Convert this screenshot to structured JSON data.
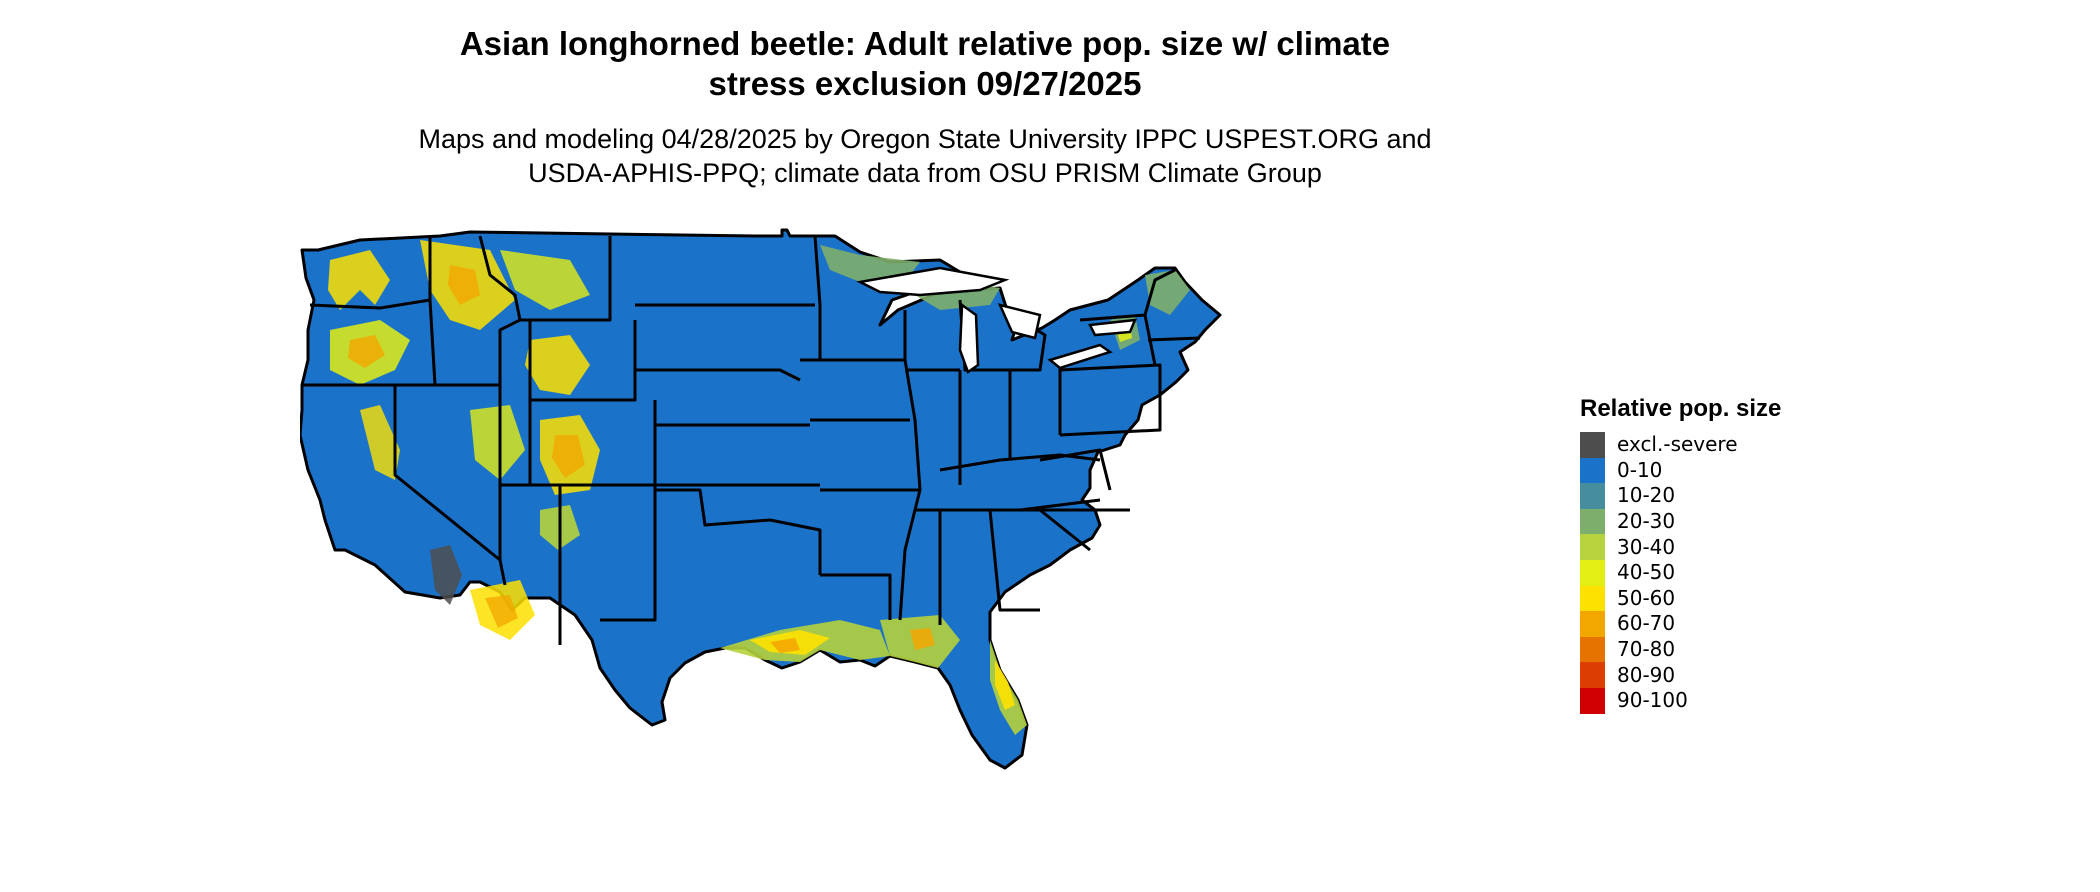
{
  "header": {
    "title_line1": "Asian longhorned beetle: Adult relative pop. size w/ climate",
    "title_line2": "stress exclusion 09/27/2025",
    "subtitle_line1": "Maps and modeling 04/28/2025 by Oregon State University IPPC USPEST.ORG and",
    "subtitle_line2": "USDA-APHIS-PPQ; climate data from OSU PRISM Climate Group"
  },
  "legend": {
    "title": "Relative pop. size",
    "items": [
      {
        "label": "excl.-severe",
        "color": "#4d4d4d"
      },
      {
        "label": "0-10",
        "color": "#1b72c9"
      },
      {
        "label": "10-20",
        "color": "#468e9d"
      },
      {
        "label": "20-30",
        "color": "#7eae6b"
      },
      {
        "label": "30-40",
        "color": "#b6d23c"
      },
      {
        "label": "40-50",
        "color": "#e3ee14"
      },
      {
        "label": "50-60",
        "color": "#fde100"
      },
      {
        "label": "60-70",
        "color": "#f2a600"
      },
      {
        "label": "70-80",
        "color": "#e67300"
      },
      {
        "label": "80-90",
        "color": "#dc3d00"
      },
      {
        "label": "90-100",
        "color": "#d00000"
      }
    ]
  },
  "map": {
    "base_color": "#1b72c9",
    "border_color": "#000000"
  }
}
